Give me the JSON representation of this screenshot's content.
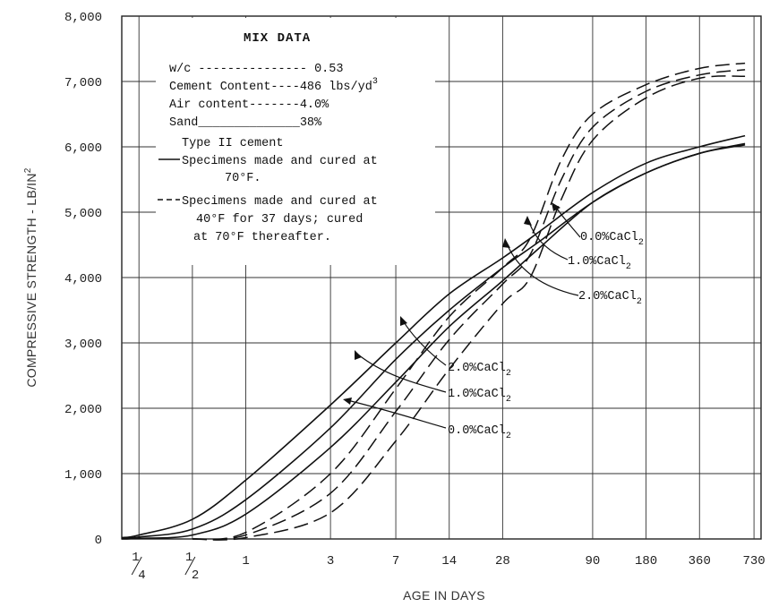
{
  "chart_data": {
    "type": "line",
    "title": "",
    "xlabel": "AGE IN DAYS",
    "ylabel": "COMPRESSIVE STRENGTH - LB/IN",
    "ylabel_superscript": "2",
    "x_scale": "log",
    "xlim": [
      0.2,
      800
    ],
    "ylim": [
      0,
      8000
    ],
    "x_ticks": [
      {
        "value": 0.25,
        "label": "1/4"
      },
      {
        "value": 0.5,
        "label": "1/2"
      },
      {
        "value": 1,
        "label": "1"
      },
      {
        "value": 3,
        "label": "3"
      },
      {
        "value": 7,
        "label": "7"
      },
      {
        "value": 14,
        "label": "14"
      },
      {
        "value": 28,
        "label": "28"
      },
      {
        "value": 90,
        "label": "90"
      },
      {
        "value": 180,
        "label": "180"
      },
      {
        "value": 360,
        "label": "360"
      },
      {
        "value": 730,
        "label": "730"
      }
    ],
    "y_ticks": [
      {
        "value": 0,
        "label": "0"
      },
      {
        "value": 1000,
        "label": "1,000"
      },
      {
        "value": 2000,
        "label": "2,000"
      },
      {
        "value": 3000,
        "label": "3,000"
      },
      {
        "value": 4000,
        "label": "4,000"
      },
      {
        "value": 5000,
        "label": "5,000"
      },
      {
        "value": 6000,
        "label": "6,000"
      },
      {
        "value": 7000,
        "label": "7,000"
      },
      {
        "value": 8000,
        "label": "8,000"
      }
    ],
    "grid": true,
    "series": [
      {
        "style": "solid",
        "cacl2": "2.0%",
        "points": [
          [
            0.2,
            20
          ],
          [
            0.25,
            60
          ],
          [
            0.5,
            300
          ],
          [
            1,
            900
          ],
          [
            3,
            2050
          ],
          [
            7,
            3000
          ],
          [
            14,
            3750
          ],
          [
            28,
            4300
          ],
          [
            45,
            4700
          ],
          [
            90,
            5300
          ],
          [
            180,
            5750
          ],
          [
            360,
            6000
          ],
          [
            650,
            6170
          ]
        ]
      },
      {
        "style": "solid",
        "cacl2": "1.0%",
        "points": [
          [
            0.2,
            10
          ],
          [
            0.25,
            30
          ],
          [
            0.5,
            150
          ],
          [
            1,
            600
          ],
          [
            3,
            1700
          ],
          [
            7,
            2750
          ],
          [
            14,
            3500
          ],
          [
            28,
            4150
          ],
          [
            45,
            4550
          ],
          [
            90,
            5150
          ],
          [
            180,
            5600
          ],
          [
            360,
            5900
          ],
          [
            650,
            6050
          ]
        ]
      },
      {
        "style": "solid",
        "cacl2": "0.0%",
        "points": [
          [
            0.2,
            0
          ],
          [
            0.25,
            10
          ],
          [
            0.5,
            60
          ],
          [
            1,
            380
          ],
          [
            3,
            1400
          ],
          [
            7,
            2400
          ],
          [
            14,
            3250
          ],
          [
            28,
            3950
          ],
          [
            45,
            4450
          ],
          [
            90,
            5150
          ],
          [
            180,
            5600
          ],
          [
            360,
            5900
          ],
          [
            650,
            6030
          ]
        ]
      },
      {
        "style": "dashed",
        "cacl2": "2.0%",
        "points": [
          [
            0.5,
            0
          ],
          [
            1,
            100
          ],
          [
            3,
            1000
          ],
          [
            7,
            2300
          ],
          [
            14,
            3400
          ],
          [
            28,
            4150
          ],
          [
            40,
            4600
          ],
          [
            60,
            5800
          ],
          [
            90,
            6500
          ],
          [
            180,
            6950
          ],
          [
            360,
            7200
          ],
          [
            650,
            7280
          ]
        ]
      },
      {
        "style": "dashed",
        "cacl2": "1.0%",
        "points": [
          [
            0.5,
            0
          ],
          [
            1,
            60
          ],
          [
            3,
            700
          ],
          [
            7,
            1950
          ],
          [
            14,
            3050
          ],
          [
            28,
            3900
          ],
          [
            40,
            4350
          ],
          [
            60,
            5500
          ],
          [
            90,
            6300
          ],
          [
            180,
            6850
          ],
          [
            360,
            7100
          ],
          [
            650,
            7180
          ]
        ]
      },
      {
        "style": "dashed",
        "cacl2": "0.0%",
        "points": [
          [
            0.5,
            0
          ],
          [
            1,
            20
          ],
          [
            3,
            400
          ],
          [
            7,
            1500
          ],
          [
            14,
            2600
          ],
          [
            28,
            3600
          ],
          [
            40,
            4000
          ],
          [
            60,
            5200
          ],
          [
            90,
            6100
          ],
          [
            180,
            6750
          ],
          [
            360,
            7050
          ],
          [
            650,
            7080
          ]
        ]
      }
    ],
    "annotations": {
      "upper_labels": [
        "0.0%CaCl",
        "1.0%CaCl",
        "2.0%CaCl"
      ],
      "lower_labels": [
        "2.0%CaCl",
        "1.0%CaCl",
        "0.0%CaCl"
      ],
      "subscript": "2"
    }
  },
  "mix_data": {
    "title": "MIX DATA",
    "wc_label": "w/c",
    "wc_leader": "---------------",
    "wc_value": "0.53",
    "cement_content": "Cement Content----486 lbs/yd",
    "cement_sup": "3",
    "air_content": "Air content-------4.0%",
    "sand": "Sand______________38%",
    "cement_type": "Type II cement",
    "solid_legend_1": "Specimens made and cured at",
    "solid_legend_2": "70°F.",
    "dashed_legend_1": "Specimens made and cured at",
    "dashed_legend_2": "40°F  for 37 days; cured",
    "dashed_legend_3": "at 70°F  thereafter."
  }
}
